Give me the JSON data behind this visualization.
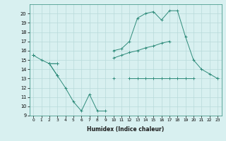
{
  "xlabel": "Humidex (Indice chaleur)",
  "x_values": [
    0,
    1,
    2,
    3,
    4,
    5,
    6,
    7,
    8,
    9,
    10,
    11,
    12,
    13,
    14,
    15,
    16,
    17,
    18,
    19,
    20,
    21,
    22,
    23
  ],
  "line1": [
    15.5,
    15.0,
    14.6,
    14.6,
    null,
    null,
    null,
    null,
    null,
    null,
    13.0,
    null,
    13.0,
    13.0,
    13.0,
    13.0,
    13.0,
    13.0,
    13.0,
    13.0,
    13.0,
    null,
    null,
    13.0
  ],
  "line2": [
    15.5,
    null,
    14.6,
    13.3,
    12.0,
    10.5,
    9.5,
    11.3,
    9.5,
    9.5,
    null,
    null,
    null,
    null,
    null,
    null,
    null,
    null,
    null,
    null,
    null,
    null,
    null,
    null
  ],
  "line3": [
    15.5,
    null,
    14.6,
    13.3,
    null,
    null,
    null,
    null,
    null,
    null,
    16.0,
    16.2,
    17.0,
    19.5,
    20.0,
    20.2,
    19.3,
    20.3,
    20.3,
    17.5,
    15.0,
    14.0,
    13.5,
    13.0
  ],
  "line4": [
    15.5,
    null,
    14.6,
    14.6,
    null,
    null,
    null,
    null,
    null,
    null,
    15.2,
    15.5,
    15.8,
    16.0,
    16.3,
    16.5,
    16.8,
    17.0,
    null,
    null,
    null,
    null,
    null,
    null
  ],
  "color": "#2e8b7a",
  "bg_color": "#d8f0f0",
  "grid_color": "#b8dada",
  "ylim": [
    9,
    21
  ],
  "xlim": [
    -0.5,
    23.5
  ],
  "yticks": [
    9,
    10,
    11,
    12,
    13,
    14,
    15,
    16,
    17,
    18,
    19,
    20
  ],
  "xticks": [
    0,
    1,
    2,
    3,
    4,
    5,
    6,
    7,
    8,
    9,
    10,
    11,
    12,
    13,
    14,
    15,
    16,
    17,
    18,
    19,
    20,
    21,
    22,
    23
  ]
}
